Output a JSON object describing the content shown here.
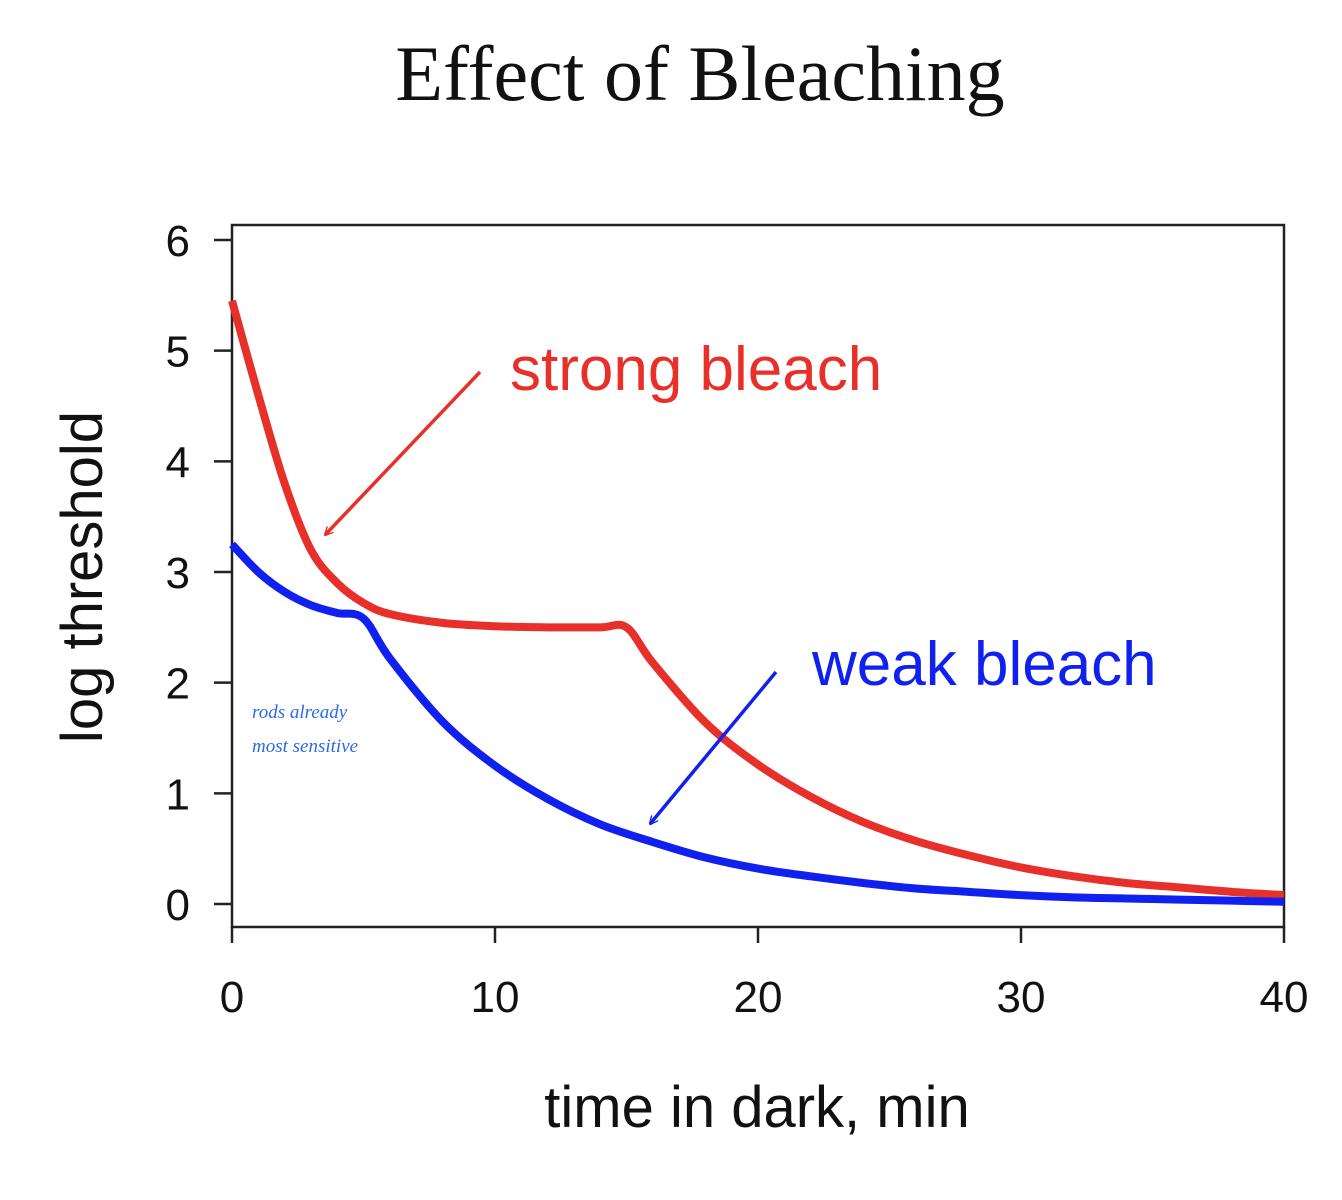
{
  "chart_data": {
    "type": "line",
    "title": "Effect of Bleaching",
    "xlabel": "time in dark, min",
    "ylabel": "log threshold",
    "xlim": [
      0,
      40
    ],
    "ylim": [
      0,
      6
    ],
    "x_ticks": [
      0,
      10,
      20,
      30,
      40
    ],
    "y_ticks": [
      0,
      1,
      2,
      3,
      4,
      5,
      6
    ],
    "grid": false,
    "series": [
      {
        "name": "strong bleach",
        "color": "#e8302a",
        "x": [
          0,
          1,
          2,
          3,
          4,
          5,
          6,
          8,
          10,
          12,
          14,
          15,
          16,
          18,
          20,
          22,
          24,
          26,
          28,
          30,
          32,
          34,
          36,
          38,
          40
        ],
        "y": [
          5.45,
          4.6,
          3.8,
          3.2,
          2.9,
          2.72,
          2.62,
          2.54,
          2.51,
          2.5,
          2.5,
          2.5,
          2.18,
          1.64,
          1.26,
          0.97,
          0.74,
          0.57,
          0.44,
          0.33,
          0.25,
          0.19,
          0.15,
          0.11,
          0.08
        ]
      },
      {
        "name": "weak bleach",
        "color": "#1020ee",
        "x": [
          0,
          1,
          2,
          3,
          4,
          5,
          6,
          8,
          10,
          12,
          14,
          16,
          18,
          20,
          22,
          24,
          26,
          28,
          30,
          32,
          34,
          36,
          38,
          40
        ],
        "y": [
          3.25,
          3.0,
          2.82,
          2.7,
          2.63,
          2.58,
          2.22,
          1.65,
          1.25,
          0.95,
          0.72,
          0.56,
          0.42,
          0.32,
          0.25,
          0.19,
          0.14,
          0.11,
          0.08,
          0.06,
          0.05,
          0.04,
          0.03,
          0.02
        ]
      }
    ],
    "annotations": [
      {
        "text": "strong bleach",
        "color": "#e8302a"
      },
      {
        "text": "weak bleach",
        "color": "#1020ee"
      },
      {
        "text": "rods already",
        "color": "#2a6ae8"
      },
      {
        "text": "most sensitive",
        "color": "#2a6ae8"
      }
    ]
  }
}
